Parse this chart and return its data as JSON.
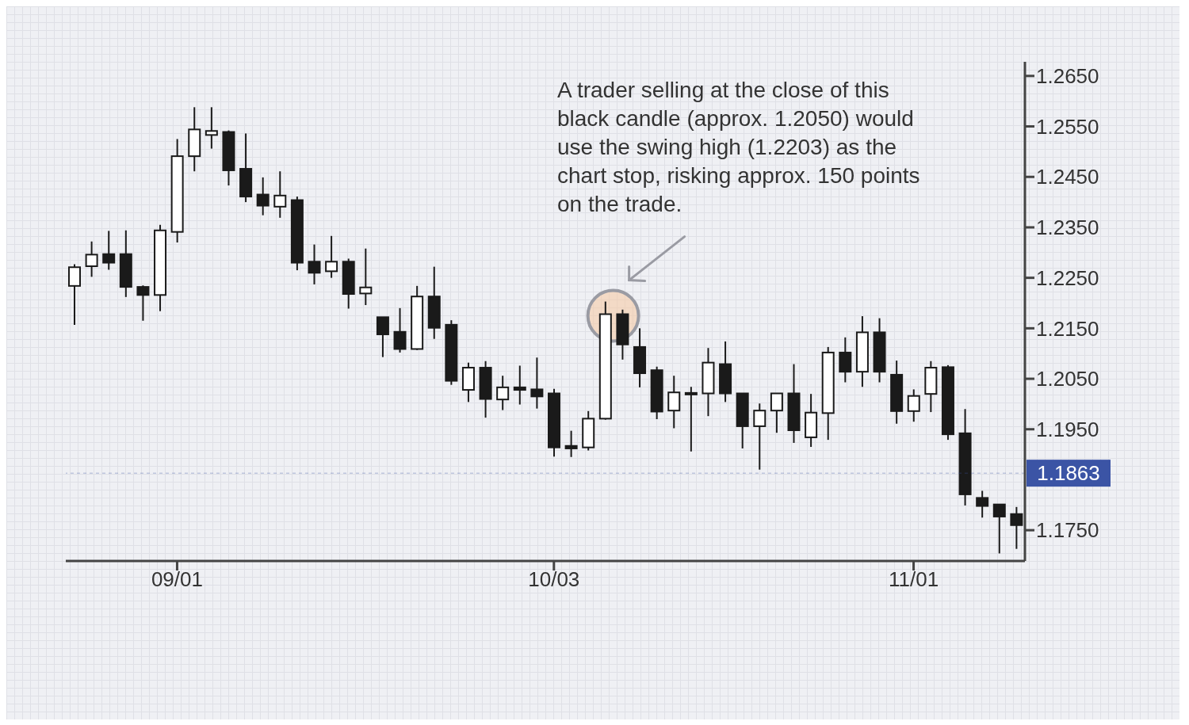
{
  "chart_data": {
    "type": "candlestick",
    "categories": [
      null,
      null,
      null,
      null,
      null,
      null,
      "09/01",
      null,
      null,
      null,
      null,
      null,
      null,
      null,
      null,
      null,
      null,
      null,
      null,
      null,
      null,
      null,
      null,
      null,
      null,
      null,
      null,
      null,
      "10/03",
      null,
      null,
      null,
      null,
      null,
      null,
      null,
      null,
      null,
      null,
      null,
      null,
      null,
      null,
      null,
      null,
      null,
      null,
      null,
      null,
      "11/01",
      null,
      null,
      null,
      null,
      null,
      null
    ],
    "ohlc": [
      [
        1.2234,
        1.2277,
        1.2157,
        1.2271
      ],
      [
        1.2273,
        1.2322,
        1.2252,
        1.2296
      ],
      [
        1.2297,
        1.2343,
        1.2266,
        1.228
      ],
      [
        1.2297,
        1.2344,
        1.2212,
        1.2232
      ],
      [
        1.2232,
        1.2235,
        1.2165,
        1.2216
      ],
      [
        1.2216,
        1.2355,
        1.2184,
        1.2344
      ],
      [
        1.2341,
        1.2525,
        1.232,
        1.2491
      ],
      [
        1.2491,
        1.2588,
        1.2461,
        1.2544
      ],
      [
        1.2533,
        1.2588,
        1.2506,
        1.2541
      ],
      [
        1.2539,
        1.2542,
        1.2433,
        1.2463
      ],
      [
        1.2466,
        1.2536,
        1.24,
        1.2411
      ],
      [
        1.2415,
        1.2449,
        1.2374,
        1.2393
      ],
      [
        1.2391,
        1.2461,
        1.2369,
        1.2413
      ],
      [
        1.2404,
        1.2411,
        1.2265,
        1.228
      ],
      [
        1.2282,
        1.2316,
        1.2237,
        1.226
      ],
      [
        1.2263,
        1.2333,
        1.225,
        1.2282
      ],
      [
        1.2282,
        1.2288,
        1.2189,
        1.2218
      ],
      [
        1.2219,
        1.2308,
        1.2196,
        1.2231
      ],
      [
        1.2172,
        1.2172,
        1.2093,
        1.2138
      ],
      [
        1.2143,
        1.219,
        1.2102,
        1.2109
      ],
      [
        1.2109,
        1.2234,
        1.2107,
        1.2213
      ],
      [
        1.2213,
        1.2272,
        1.2129,
        1.2151
      ],
      [
        1.2157,
        1.2166,
        1.2038,
        1.2046
      ],
      [
        1.2028,
        1.2082,
        1.2004,
        1.2072
      ],
      [
        1.2072,
        1.2085,
        1.1973,
        1.201
      ],
      [
        1.2009,
        1.2056,
        1.1988,
        1.2033
      ],
      [
        1.2033,
        1.2076,
        1.1999,
        1.2028
      ],
      [
        1.2029,
        1.2092,
        1.1991,
        1.2015
      ],
      [
        1.2021,
        1.203,
        1.1896,
        1.1914
      ],
      [
        1.1917,
        1.1947,
        1.1895,
        1.1912
      ],
      [
        1.1914,
        1.1986,
        1.1908,
        1.1971
      ],
      [
        1.1971,
        1.2203,
        1.1969,
        1.2178
      ],
      [
        1.2178,
        1.2187,
        1.2088,
        1.2118
      ],
      [
        1.2113,
        1.215,
        1.2033,
        1.2061
      ],
      [
        1.2067,
        1.2074,
        1.197,
        1.1985
      ],
      [
        1.1987,
        1.2056,
        1.1952,
        1.2023
      ],
      [
        1.2022,
        1.2034,
        1.1906,
        1.2019
      ],
      [
        1.2021,
        1.2111,
        1.1976,
        1.2082
      ],
      [
        1.2079,
        1.2124,
        1.2004,
        1.2021
      ],
      [
        1.2021,
        1.2021,
        1.1912,
        1.1956
      ],
      [
        1.1956,
        1.2001,
        1.187,
        1.1987
      ],
      [
        1.1987,
        1.2021,
        1.1943,
        1.2021
      ],
      [
        1.2021,
        1.2079,
        1.1923,
        1.1948
      ],
      [
        1.1934,
        1.202,
        1.1915,
        1.1983
      ],
      [
        1.1982,
        1.2113,
        1.1929,
        1.2102
      ],
      [
        1.2102,
        1.2132,
        1.2043,
        1.2064
      ],
      [
        1.2064,
        1.2174,
        1.2034,
        1.2142
      ],
      [
        1.2142,
        1.217,
        1.2043,
        1.2064
      ],
      [
        1.2058,
        1.2086,
        1.1961,
        1.1986
      ],
      [
        1.1986,
        1.2029,
        1.1965,
        1.2016
      ],
      [
        1.202,
        1.2085,
        1.1984,
        1.2072
      ],
      [
        1.2073,
        1.2077,
        1.1929,
        1.194
      ],
      [
        1.1942,
        1.199,
        1.1799,
        1.1821
      ],
      [
        1.1814,
        1.1828,
        1.1775,
        1.1798
      ],
      [
        1.1801,
        1.1801,
        1.1704,
        1.1777
      ],
      [
        1.1782,
        1.1796,
        1.1713,
        1.176
      ]
    ],
    "ylim": [
      1.1689,
      1.2678
    ],
    "yticks": [
      {
        "value": 1.265,
        "label": "1.2650"
      },
      {
        "value": 1.255,
        "label": "1.2550"
      },
      {
        "value": 1.245,
        "label": "1.2450"
      },
      {
        "value": 1.235,
        "label": "1.2350"
      },
      {
        "value": 1.225,
        "label": "1.2250"
      },
      {
        "value": 1.215,
        "label": "1.2150"
      },
      {
        "value": 1.205,
        "label": "1.2050"
      },
      {
        "value": 1.195,
        "label": "1.1950"
      },
      {
        "value": 1.175,
        "label": "1.1750"
      }
    ],
    "ref_lines": [
      {
        "axis": "y",
        "value": 1.1863,
        "label": "1.1863",
        "color": "#3b54a5"
      }
    ],
    "annotations": [
      "A trader selling at the close of this black candle (approx. 1.2050) would use the swing high (1.2203) as the chart stop, risking approx. 150 points on the trade."
    ]
  }
}
